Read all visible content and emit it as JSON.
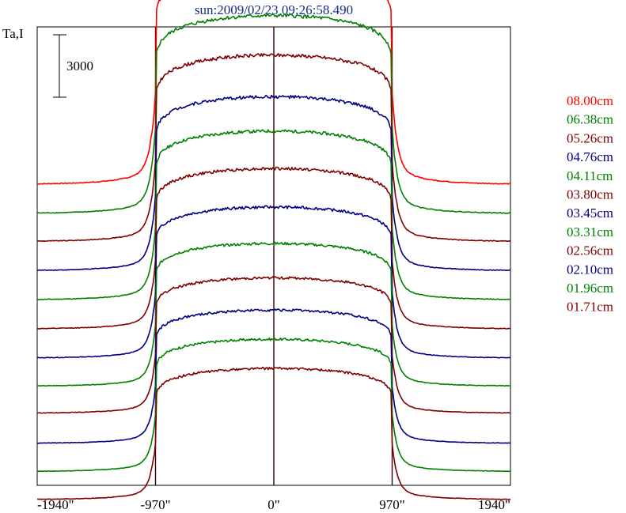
{
  "chart_data": {
    "type": "line",
    "title": "sun:2009/02/23 09:26:58.490",
    "ylabel": "Ta,I",
    "scale_bar": {
      "label": "3000",
      "value": 3000
    },
    "x_ticks": [
      {
        "value": -1940,
        "label": "-1940\""
      },
      {
        "value": -970,
        "label": "-970\""
      },
      {
        "value": 0,
        "label": "0\""
      },
      {
        "value": 970,
        "label": "970\""
      },
      {
        "value": 1940,
        "label": "1940\""
      }
    ],
    "xlim": [
      -1940,
      1940
    ],
    "vertical_lines": [
      -970,
      0,
      970
    ],
    "grid": false,
    "legend_position": "right",
    "series": [
      {
        "name": "08.00cm",
        "color": "#ff0000",
        "baseline": 0,
        "peak": 10300
      },
      {
        "name": "06.38cm",
        "color": "#008000",
        "baseline": -1400,
        "peak": 8100
      },
      {
        "name": "05.26cm",
        "color": "#800000",
        "baseline": -2750,
        "peak": 6200
      },
      {
        "name": "04.76cm",
        "color": "#000080",
        "baseline": -4150,
        "peak": 4200
      },
      {
        "name": "04.11cm",
        "color": "#008000",
        "baseline": -5550,
        "peak": 2550
      },
      {
        "name": "03.80cm",
        "color": "#800000",
        "baseline": -6950,
        "peak": 750
      },
      {
        "name": "03.45cm",
        "color": "#000080",
        "baseline": -8350,
        "peak": -1100
      },
      {
        "name": "03.31cm",
        "color": "#008000",
        "baseline": -9700,
        "peak": -2850
      },
      {
        "name": "02.56cm",
        "color": "#800000",
        "baseline": -11000,
        "peak": -4500
      },
      {
        "name": "02.10cm",
        "color": "#000080",
        "baseline": -12450,
        "peak": -6050
      },
      {
        "name": "01.96cm",
        "color": "#008000",
        "baseline": -13800,
        "peak": -7450
      },
      {
        "name": "01.71cm",
        "color": "#800000",
        "baseline": -15150,
        "peak": -8850
      }
    ]
  }
}
